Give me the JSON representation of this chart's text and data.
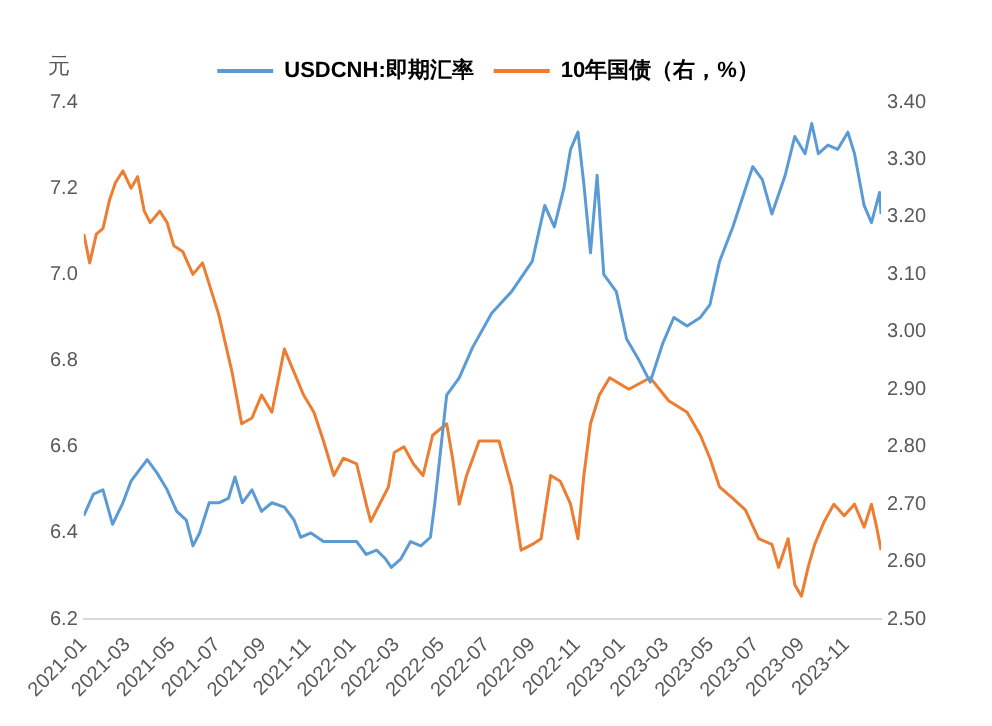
{
  "chart_data": {
    "type": "line",
    "ylabel": "元",
    "legend": "top",
    "marker": "none",
    "line_style": "solid",
    "grid": false,
    "xlim": [
      "2021-01-01",
      "2023-12-18"
    ],
    "xticks": [
      "2021-01",
      "2021-03",
      "2021-05",
      "2021-07",
      "2021-09",
      "2021-11",
      "2022-01",
      "2022-03",
      "2022-05",
      "2022-07",
      "2022-09",
      "2022-11",
      "2023-01",
      "2023-03",
      "2023-05",
      "2023-07",
      "2023-09",
      "2023-11"
    ],
    "ylim": [
      6.2,
      7.4
    ],
    "yticks": [
      6.2,
      6.4,
      6.6,
      6.8,
      {
        "value": 7,
        "label": "7.0"
      },
      7.2,
      7.4
    ],
    "y2lim": [
      2.5,
      3.4
    ],
    "y2ticks": [
      {
        "value": 2.5,
        "label": "2.50"
      },
      {
        "value": 2.6,
        "label": "2.60"
      },
      {
        "value": 2.7,
        "label": "2.70"
      },
      {
        "value": 2.8,
        "label": "2.80"
      },
      {
        "value": 2.9,
        "label": "2.90"
      },
      {
        "value": 3,
        "label": "3.00"
      },
      {
        "value": 3.1,
        "label": "3.10"
      },
      {
        "value": 3.2,
        "label": "3.20"
      },
      {
        "value": 3.3,
        "label": "3.30"
      },
      {
        "value": 3.4,
        "label": "3.40"
      }
    ],
    "series": [
      {
        "name": "USDCNH:即期汇率",
        "color": "#5b9bd5",
        "x": [
          "2021-01-01",
          "2021-01-14",
          "2021-01-27",
          "2021-02-09",
          "2021-02-23",
          "2021-03-06",
          "2021-03-19",
          "2021-03-28",
          "2021-04-10",
          "2021-04-24",
          "2021-05-07",
          "2021-05-20",
          "2021-05-29",
          "2021-06-07",
          "2021-06-20",
          "2021-07-03",
          "2021-07-16",
          "2021-07-25",
          "2021-08-04",
          "2021-08-17",
          "2021-08-30",
          "2021-09-13",
          "2021-09-30",
          "2021-10-13",
          "2021-10-22",
          "2021-11-05",
          "2021-11-22",
          "2021-12-06",
          "2021-12-19",
          "2022-01-06",
          "2022-01-19",
          "2022-02-02",
          "2022-02-14",
          "2022-02-22",
          "2022-03-07",
          "2022-03-20",
          "2022-04-03",
          "2022-04-16",
          "2022-04-22",
          "2022-05-08",
          "2022-05-25",
          "2022-06-12",
          "2022-07-08",
          "2022-08-04",
          "2022-09-01",
          "2022-09-18",
          "2022-10-01",
          "2022-10-14",
          "2022-10-23",
          "2022-11-02",
          "2022-11-10",
          "2022-11-19",
          "2022-11-28",
          "2022-12-07",
          "2022-12-24",
          "2023-01-07",
          "2023-01-24",
          "2023-02-08",
          "2023-02-25",
          "2023-03-12",
          "2023-03-30",
          "2023-04-17",
          "2023-04-30",
          "2023-05-13",
          "2023-05-31",
          "2023-06-27",
          "2023-07-10",
          "2023-07-23",
          "2023-08-10",
          "2023-08-23",
          "2023-09-06",
          "2023-09-15",
          "2023-09-24",
          "2023-10-07",
          "2023-10-20",
          "2023-11-03",
          "2023-11-12",
          "2023-11-25",
          "2023-12-05",
          "2023-12-16",
          "2023-12-18"
        ],
        "values": [
          6.44,
          6.49,
          6.5,
          6.42,
          6.47,
          6.52,
          6.55,
          6.57,
          6.54,
          6.5,
          6.45,
          6.43,
          6.37,
          6.4,
          6.47,
          6.47,
          6.48,
          6.53,
          6.47,
          6.5,
          6.45,
          6.47,
          6.46,
          6.43,
          6.39,
          6.4,
          6.38,
          6.38,
          6.38,
          6.38,
          6.35,
          6.36,
          6.34,
          6.32,
          6.34,
          6.38,
          6.37,
          6.39,
          6.47,
          6.72,
          6.76,
          6.83,
          6.91,
          6.96,
          7.03,
          7.16,
          7.11,
          7.2,
          7.29,
          7.33,
          7.21,
          7.05,
          7.23,
          7.0,
          6.96,
          6.85,
          6.8,
          6.75,
          6.84,
          6.9,
          6.88,
          6.9,
          6.93,
          7.03,
          7.11,
          7.25,
          7.22,
          7.14,
          7.23,
          7.32,
          7.28,
          7.35,
          7.28,
          7.3,
          7.29,
          7.33,
          7.28,
          7.16,
          7.12,
          7.19,
          7.14
        ]
      },
      {
        "name": "10年国债（右，%）",
        "color": "#ed7d31",
        "axis": "y2",
        "x": [
          "2021-01-01",
          "2021-01-09",
          "2021-01-18",
          "2021-01-27",
          "2021-02-05",
          "2021-02-13",
          "2021-02-23",
          "2021-03-06",
          "2021-03-15",
          "2021-03-24",
          "2021-04-01",
          "2021-04-14",
          "2021-04-24",
          "2021-05-03",
          "2021-05-15",
          "2021-05-29",
          "2021-06-11",
          "2021-07-03",
          "2021-07-21",
          "2021-08-03",
          "2021-08-17",
          "2021-08-30",
          "2021-09-13",
          "2021-09-30",
          "2021-10-13",
          "2021-10-26",
          "2021-11-09",
          "2021-11-22",
          "2021-12-06",
          "2021-12-19",
          "2022-01-06",
          "2022-01-19",
          "2022-01-25",
          "2022-02-06",
          "2022-02-18",
          "2022-02-26",
          "2022-03-11",
          "2022-03-24",
          "2022-04-06",
          "2022-04-19",
          "2022-05-08",
          "2022-05-16",
          "2022-05-25",
          "2022-06-04",
          "2022-06-21",
          "2022-07-18",
          "2022-08-04",
          "2022-08-17",
          "2022-09-01",
          "2022-09-13",
          "2022-09-26",
          "2022-10-09",
          "2022-10-23",
          "2022-11-02",
          "2022-11-10",
          "2022-11-19",
          "2022-12-01",
          "2022-12-15",
          "2023-01-10",
          "2023-02-08",
          "2023-03-05",
          "2023-03-30",
          "2023-04-17",
          "2023-04-30",
          "2023-05-13",
          "2023-05-31",
          "2023-06-17",
          "2023-07-05",
          "2023-07-23",
          "2023-08-01",
          "2023-08-14",
          "2023-08-23",
          "2023-09-01",
          "2023-09-10",
          "2023-09-19",
          "2023-10-02",
          "2023-10-15",
          "2023-10-29",
          "2023-11-12",
          "2023-11-25",
          "2023-12-05",
          "2023-12-12",
          "2023-12-18"
        ],
        "values": [
          3.17,
          3.12,
          3.17,
          3.18,
          3.23,
          3.26,
          3.28,
          3.25,
          3.27,
          3.21,
          3.19,
          3.21,
          3.19,
          3.15,
          3.14,
          3.1,
          3.12,
          3.03,
          2.93,
          2.84,
          2.85,
          2.89,
          2.86,
          2.97,
          2.93,
          2.89,
          2.86,
          2.81,
          2.75,
          2.78,
          2.77,
          2.7,
          2.67,
          2.7,
          2.73,
          2.79,
          2.8,
          2.77,
          2.75,
          2.82,
          2.84,
          2.78,
          2.7,
          2.75,
          2.81,
          2.81,
          2.73,
          2.62,
          2.63,
          2.64,
          2.75,
          2.74,
          2.7,
          2.64,
          2.75,
          2.84,
          2.89,
          2.92,
          2.9,
          2.92,
          2.88,
          2.86,
          2.82,
          2.78,
          2.73,
          2.71,
          2.69,
          2.64,
          2.63,
          2.59,
          2.64,
          2.56,
          2.54,
          2.59,
          2.63,
          2.67,
          2.7,
          2.68,
          2.7,
          2.66,
          2.7,
          2.66,
          2.62
        ]
      }
    ]
  }
}
